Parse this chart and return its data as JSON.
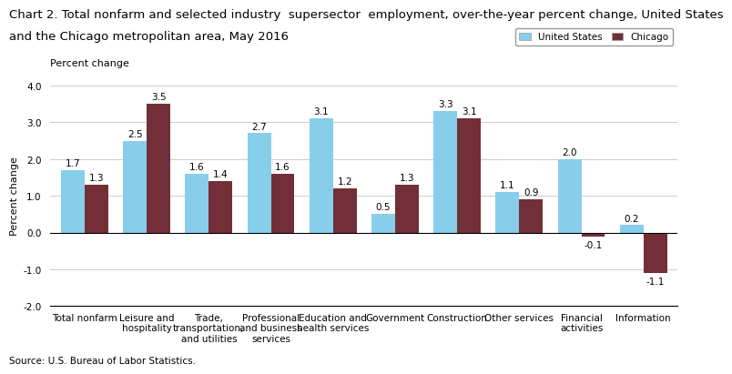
{
  "title_line1": "Chart 2. Total nonfarm and selected industry  supersector  employment, over-the-year percent change, United States",
  "title_line2": "and the Chicago metropolitan area, May 2016",
  "ylabel": "Percent change",
  "source": "Source: U.S. Bureau of Labor Statistics.",
  "categories": [
    "Total nonfarm",
    "Leisure and\nhospitality",
    "Trade,\ntransportation,\nand utilities",
    "Professional\nand business\nservices",
    "Education and\nhealth services",
    "Government",
    "Construction",
    "Other services",
    "Financial\nactivities",
    "Information"
  ],
  "us_values": [
    1.7,
    2.5,
    1.6,
    2.7,
    3.1,
    0.5,
    3.3,
    1.1,
    2.0,
    0.2
  ],
  "chicago_values": [
    1.3,
    3.5,
    1.4,
    1.6,
    1.2,
    1.3,
    3.1,
    0.9,
    -0.1,
    -1.1
  ],
  "us_color": "#87CEEB",
  "chicago_color": "#722F37",
  "ylim": [
    -2.0,
    4.0
  ],
  "yticks": [
    -2.0,
    -1.0,
    0.0,
    1.0,
    2.0,
    3.0,
    4.0
  ],
  "legend_us": "United States",
  "legend_chicago": "Chicago",
  "title_fontsize": 9.5,
  "label_fontsize": 8,
  "tick_fontsize": 7.5,
  "bar_label_fontsize": 7.5
}
